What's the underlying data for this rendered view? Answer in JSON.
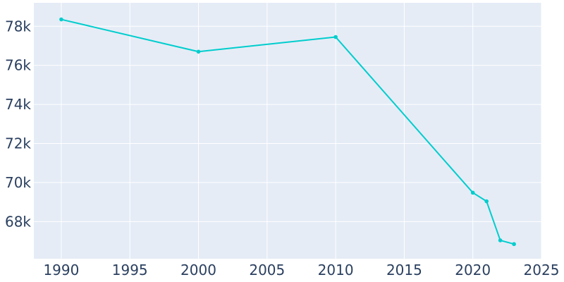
{
  "chart_data": {
    "type": "line",
    "title": "",
    "xlabel": "",
    "ylabel": "",
    "x": [
      1990,
      2000,
      2010,
      2020,
      2021,
      2022,
      2023
    ],
    "series": [
      {
        "values": [
          78350,
          76700,
          77450,
          69480,
          69040,
          67040,
          66850
        ]
      }
    ],
    "xlim": [
      1988,
      2025
    ],
    "ylim": [
      66100,
      79200
    ],
    "x_ticks": [
      1990,
      1995,
      2000,
      2005,
      2010,
      2015,
      2020,
      2025
    ],
    "x_tick_labels": [
      "1990",
      "1995",
      "2000",
      "2005",
      "2010",
      "2015",
      "2020",
      "2025"
    ],
    "y_ticks": [
      68000,
      70000,
      72000,
      74000,
      76000,
      78000
    ],
    "y_tick_labels": [
      "68k",
      "70k",
      "72k",
      "74k",
      "76k",
      "78k"
    ],
    "grid": true,
    "legend": "none",
    "colors": {
      "plot_background": "#e5ecf6",
      "line": "#00cdcd",
      "grid": "#ffffff",
      "tick_text": "#2a3f5f"
    }
  }
}
